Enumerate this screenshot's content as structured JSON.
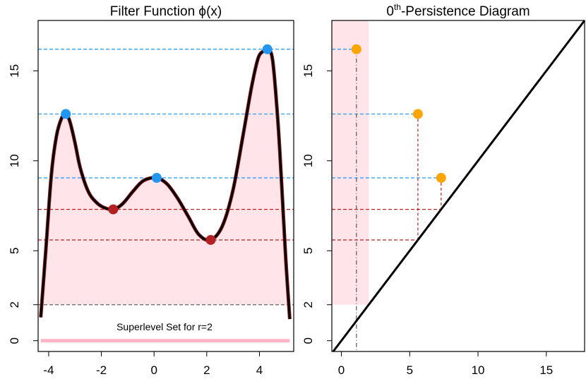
{
  "chart_data": [
    {
      "type": "line",
      "title_main": "Filter Function ",
      "title_phi": "ϕ",
      "title_tail": "(x)",
      "xlim": [
        -4.4,
        5.3
      ],
      "ylim": [
        -0.6,
        17.8
      ],
      "x_ticks": [
        -4,
        -2,
        0,
        2,
        4
      ],
      "x_tick_labels": [
        "-4",
        "-2",
        "0",
        "2",
        "4"
      ],
      "y_ticks": [
        0,
        2,
        5,
        10,
        15
      ],
      "y_tick_labels": [
        "0",
        "2",
        "5",
        "10",
        "15"
      ],
      "curve": {
        "x": [
          -4.3,
          -4.1,
          -3.9,
          -3.7,
          -3.5,
          -3.35,
          -3.2,
          -3.0,
          -2.8,
          -2.5,
          -2.2,
          -1.9,
          -1.55,
          -1.2,
          -0.8,
          -0.4,
          0.1,
          0.5,
          0.9,
          1.3,
          1.7,
          2.15,
          2.6,
          3.0,
          3.4,
          3.7,
          3.95,
          4.15,
          4.3,
          4.5,
          4.7,
          4.85,
          5.0,
          5.15
        ],
        "y": [
          1.3,
          5.2,
          9.2,
          11.4,
          12.4,
          12.6,
          12.2,
          11.0,
          9.6,
          8.3,
          7.7,
          7.4,
          7.3,
          7.6,
          8.3,
          8.9,
          9.05,
          8.7,
          7.9,
          6.9,
          5.9,
          5.6,
          6.4,
          8.4,
          11.6,
          14.1,
          15.7,
          16.1,
          16.2,
          15.6,
          12.2,
          8.5,
          4.5,
          1.2
        ]
      },
      "maxima": [
        {
          "x": -3.35,
          "y": 12.6
        },
        {
          "x": 0.1,
          "y": 9.05
        },
        {
          "x": 4.3,
          "y": 16.2
        }
      ],
      "minima": [
        {
          "x": -1.55,
          "y": 7.3
        },
        {
          "x": 2.15,
          "y": 5.6
        }
      ],
      "threshold_r": 2,
      "superlevel_span": [
        -4.3,
        5.15
      ],
      "superlevel_label": "Superlevel Set for r=2"
    },
    {
      "type": "scatter",
      "title_main": "0",
      "title_sup": "th",
      "title_tail": "-Persistence Diagram",
      "xlim": [
        -0.7,
        17.8
      ],
      "ylim": [
        -0.6,
        17.8
      ],
      "x_ticks": [
        0,
        5,
        10,
        15
      ],
      "x_tick_labels": [
        "0",
        "5",
        "10",
        "15"
      ],
      "y_ticks": [
        0,
        2,
        5,
        10,
        15
      ],
      "y_tick_labels": [
        "0",
        "2",
        "5",
        "10",
        "15"
      ],
      "points": [
        {
          "birth": 1.1,
          "death": 16.2
        },
        {
          "birth": 5.6,
          "death": 12.6
        },
        {
          "birth": 7.3,
          "death": 9.05
        }
      ],
      "death_levels": [
        16.2,
        12.6,
        9.05
      ],
      "birth_levels": [
        7.3,
        5.6
      ],
      "band_x": [
        -0.7,
        2.0
      ],
      "band_y": [
        2,
        17.8
      ]
    }
  ],
  "colors": {
    "max": "#2196F3",
    "min": "#B22222",
    "point": "#FFA500",
    "fill": "#FFE4EA",
    "pinkline": "#FFB6C6",
    "curve": "#000000",
    "curve_under": "#8B1A1A",
    "threshold": "#666666"
  }
}
